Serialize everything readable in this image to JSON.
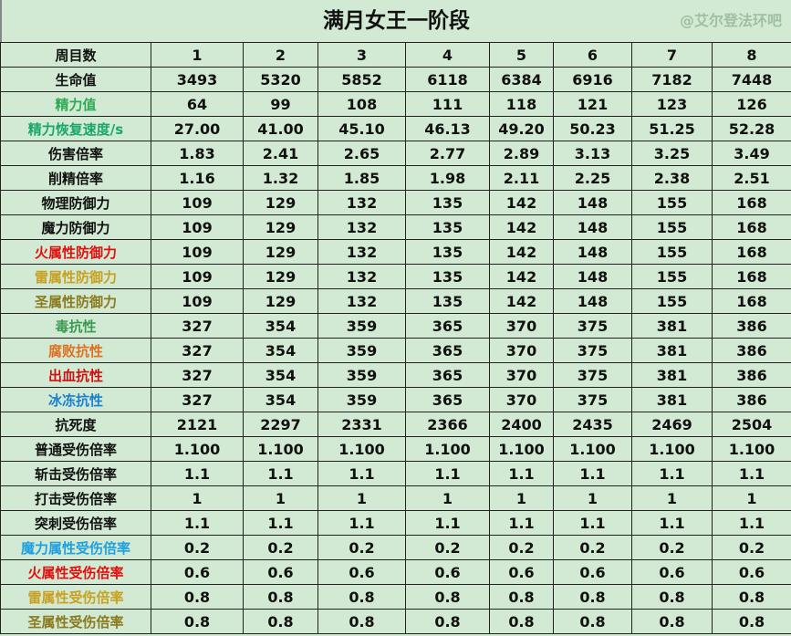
{
  "title": "满月女王一阶段",
  "watermark": "@艾尔登法环吧",
  "header": {
    "label": "周目数",
    "cols": [
      "1",
      "2",
      "3",
      "4",
      "5",
      "6",
      "7",
      "8"
    ]
  },
  "rows": [
    {
      "label": "生命值",
      "color": "#111111",
      "values": [
        "3493",
        "5320",
        "5852",
        "6118",
        "6384",
        "6916",
        "7182",
        "7448"
      ]
    },
    {
      "label": "精力值",
      "color": "#2eaa55",
      "values": [
        "64",
        "99",
        "108",
        "111",
        "118",
        "121",
        "123",
        "126"
      ]
    },
    {
      "label": "精力恢复速度/s",
      "color": "#1aa86a",
      "values": [
        "27.00",
        "41.00",
        "45.10",
        "46.13",
        "49.20",
        "50.23",
        "51.25",
        "52.28"
      ]
    },
    {
      "label": "伤害倍率",
      "color": "#111111",
      "values": [
        "1.83",
        "2.41",
        "2.65",
        "2.77",
        "2.89",
        "3.13",
        "3.25",
        "3.49"
      ]
    },
    {
      "label": "削精倍率",
      "color": "#111111",
      "values": [
        "1.16",
        "1.32",
        "1.85",
        "1.98",
        "2.11",
        "2.25",
        "2.38",
        "2.51"
      ]
    },
    {
      "label": "物理防御力",
      "color": "#111111",
      "values": [
        "109",
        "129",
        "132",
        "135",
        "142",
        "148",
        "155",
        "168"
      ]
    },
    {
      "label": "魔力防御力",
      "color": "#111111",
      "values": [
        "109",
        "129",
        "132",
        "135",
        "142",
        "148",
        "155",
        "168"
      ]
    },
    {
      "label": "火属性防御力",
      "color": "#e01010",
      "values": [
        "109",
        "129",
        "132",
        "135",
        "142",
        "148",
        "155",
        "168"
      ]
    },
    {
      "label": "雷属性防御力",
      "color": "#c9a020",
      "values": [
        "109",
        "129",
        "132",
        "135",
        "142",
        "148",
        "155",
        "168"
      ]
    },
    {
      "label": "圣属性防御力",
      "color": "#8a7a1e",
      "values": [
        "109",
        "129",
        "132",
        "135",
        "142",
        "148",
        "155",
        "168"
      ]
    },
    {
      "label": "毒抗性",
      "color": "#3a9a50",
      "values": [
        "327",
        "354",
        "359",
        "365",
        "370",
        "375",
        "381",
        "386"
      ]
    },
    {
      "label": "腐败抗性",
      "color": "#e07020",
      "values": [
        "327",
        "354",
        "359",
        "365",
        "370",
        "375",
        "381",
        "386"
      ]
    },
    {
      "label": "出血抗性",
      "color": "#d01010",
      "values": [
        "327",
        "354",
        "359",
        "365",
        "370",
        "375",
        "381",
        "386"
      ]
    },
    {
      "label": "冰冻抗性",
      "color": "#1a80d0",
      "values": [
        "327",
        "354",
        "359",
        "365",
        "370",
        "375",
        "381",
        "386"
      ]
    },
    {
      "label": "抗死度",
      "color": "#111111",
      "values": [
        "2121",
        "2297",
        "2331",
        "2366",
        "2400",
        "2435",
        "2469",
        "2504"
      ]
    },
    {
      "label": "普通受伤倍率",
      "color": "#111111",
      "values": [
        "1.100",
        "1.100",
        "1.100",
        "1.100",
        "1.100",
        "1.100",
        "1.100",
        "1.100"
      ]
    },
    {
      "label": "斩击受伤倍率",
      "color": "#111111",
      "values": [
        "1.1",
        "1.1",
        "1.1",
        "1.1",
        "1.1",
        "1.1",
        "1.1",
        "1.1"
      ]
    },
    {
      "label": "打击受伤倍率",
      "color": "#111111",
      "values": [
        "1",
        "1",
        "1",
        "1",
        "1",
        "1",
        "1",
        "1"
      ]
    },
    {
      "label": "突刺受伤倍率",
      "color": "#111111",
      "values": [
        "1.1",
        "1.1",
        "1.1",
        "1.1",
        "1.1",
        "1.1",
        "1.1",
        "1.1"
      ]
    },
    {
      "label": "魔力属性受伤倍率",
      "color": "#20a0e0",
      "values": [
        "0.2",
        "0.2",
        "0.2",
        "0.2",
        "0.2",
        "0.2",
        "0.2",
        "0.2"
      ]
    },
    {
      "label": "火属性受伤倍率",
      "color": "#e01010",
      "values": [
        "0.6",
        "0.6",
        "0.6",
        "0.6",
        "0.6",
        "0.6",
        "0.6",
        "0.6"
      ]
    },
    {
      "label": "雷属性受伤倍率",
      "color": "#c9a020",
      "values": [
        "0.8",
        "0.8",
        "0.8",
        "0.8",
        "0.8",
        "0.8",
        "0.8",
        "0.8"
      ]
    },
    {
      "label": "圣属性受伤倍率",
      "color": "#8a7a1e",
      "values": [
        "0.8",
        "0.8",
        "0.8",
        "0.8",
        "0.8",
        "0.8",
        "0.8",
        "0.8"
      ]
    }
  ]
}
